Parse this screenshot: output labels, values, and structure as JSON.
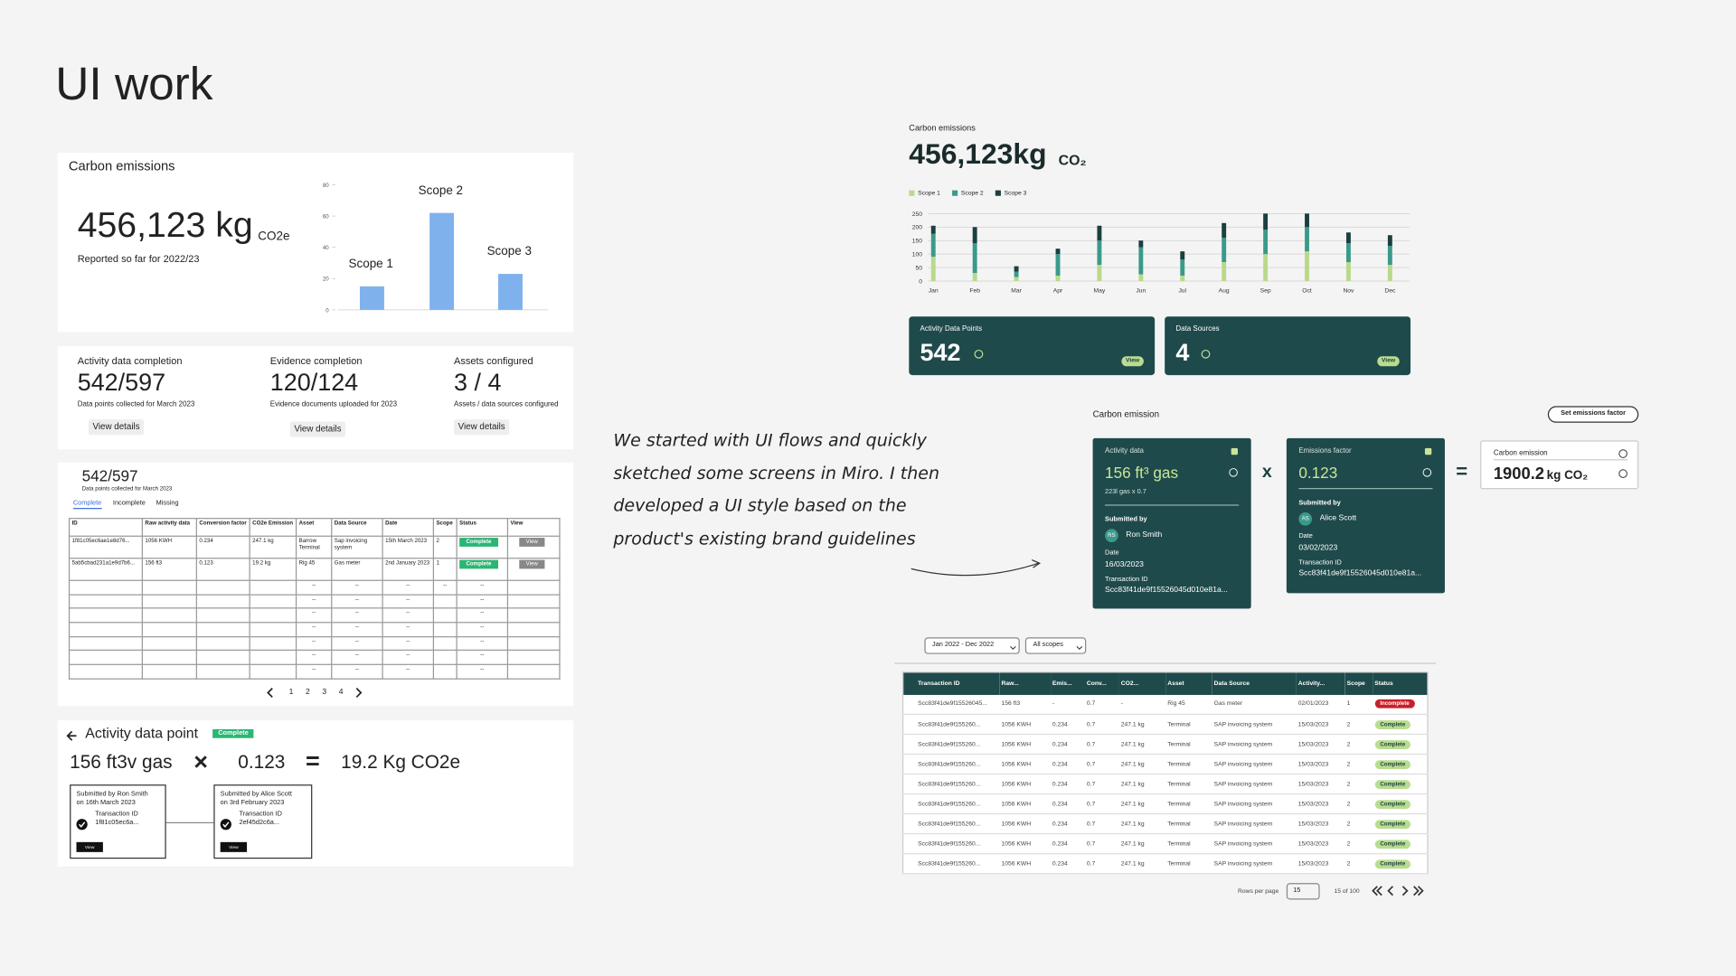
{
  "title": "UI work",
  "note": "We started with UI flows and quickly sketched some screens in Miro. I then developed a UI style based on the product's existing brand guidelines",
  "wire_summary": {
    "heading": "Carbon emissions",
    "total": "456,123 kg",
    "unit": "CO2e",
    "caption": "Reported so far for 2022/23"
  },
  "wire_stats": [
    {
      "label": "Activity data completion",
      "value": "542/597",
      "caption": "Data points collected for March 2023",
      "button": "View details"
    },
    {
      "label": "Evidence completion",
      "value": "120/124",
      "caption": "Evidence documents uploaded for 2023",
      "button": "View details"
    },
    {
      "label": "Assets configured",
      "value": "3 / 4",
      "caption": "Assets / data sources configured",
      "button": "View details"
    }
  ],
  "wire_table": {
    "value": "542/597",
    "caption": "Data points collected for March 2023",
    "tabs": [
      "Complete",
      "Incomplete",
      "Missing"
    ],
    "columns": [
      "ID",
      "Raw activity data",
      "Conversion factor",
      "CO2e Emission",
      "Asset",
      "Data Source",
      "Date",
      "Scope",
      "Status",
      "View"
    ],
    "rows": [
      [
        "1f81c05ec6ae1e8d76...",
        "1056 KWH",
        "0.234",
        "247.1 kg",
        "Barrow Terminal",
        "Sap invoicing system",
        "15th March 2023",
        "2",
        "Complete",
        "View"
      ],
      [
        "5ab5cbad231a1e9d7b6...",
        "156 ft3",
        "0.123",
        "19.2 kg",
        "Rig 45",
        "Gas meter",
        "2nd January 2023",
        "1",
        "Complete",
        "View"
      ]
    ],
    "blank": "--",
    "pages": [
      "1",
      "2",
      "3",
      "4"
    ]
  },
  "wire_detail": {
    "heading": "Activity data point",
    "status": "Complete",
    "activity": "156 ft3v gas",
    "times": "×",
    "factor": "0.123",
    "equals": "=",
    "result": "19.2 Kg CO2e",
    "cards": [
      {
        "submitted": "Submitted by Ron Smith",
        "date": "on 16th March 2023",
        "tx_label": "Transaction ID",
        "tx": "1f81c05ec6a...",
        "button": "View"
      },
      {
        "submitted": "Submitted by Alice Scott",
        "date": "on 3rd February 2023",
        "tx_label": "Transaction ID",
        "tx": "2ef45d2c6a...",
        "button": "View"
      }
    ]
  },
  "design_summary": {
    "heading": "Carbon emissions",
    "total": "456,123kg",
    "unit": "CO₂"
  },
  "chart_data": [
    {
      "type": "bar",
      "categories": [
        "Scope 1",
        "Scope 2",
        "Scope 3"
      ],
      "values": [
        15,
        62,
        23
      ],
      "color": "#7fb2ec",
      "ylim": [
        0,
        80
      ],
      "yticks": [
        0,
        20,
        40,
        60,
        80
      ],
      "grid": false
    },
    {
      "type": "stacked_bar",
      "categories": [
        "Jan",
        "Feb",
        "Mar",
        "Apr",
        "May",
        "Jun",
        "Jul",
        "Aug",
        "Sep",
        "Oct",
        "Nov",
        "Dec"
      ],
      "series": [
        {
          "name": "Scope 1",
          "color": "#b9d98a",
          "values": [
            90,
            30,
            15,
            20,
            60,
            25,
            20,
            70,
            100,
            110,
            70,
            60
          ]
        },
        {
          "name": "Scope 2",
          "color": "#3a9a8a",
          "values": [
            85,
            110,
            20,
            80,
            90,
            100,
            60,
            90,
            90,
            90,
            70,
            70
          ]
        },
        {
          "name": "Scope 3",
          "color": "#1c3f3f",
          "values": [
            30,
            60,
            20,
            20,
            55,
            25,
            30,
            55,
            60,
            50,
            40,
            40
          ]
        }
      ],
      "ylim": [
        0,
        250
      ],
      "yticks": [
        0,
        50,
        100,
        150,
        200,
        250
      ],
      "grid": true,
      "legend": "top-left"
    }
  ],
  "design_tiles": [
    {
      "label": "Activity Data Points",
      "value": "542",
      "button": "View"
    },
    {
      "label": "Data Sources",
      "value": "4",
      "button": "View"
    }
  ],
  "design_calc": {
    "heading": "Carbon emission",
    "button": "Set emissions factor",
    "times": "x",
    "equals": "=",
    "activity": {
      "label": "Activity data",
      "value": "156 ft³ gas",
      "formula": "223l gas x 0.7",
      "submitted_label": "Submitted by",
      "initials": "RS",
      "name": "Ron Smith",
      "date_label": "Date",
      "date": "16/03/2023",
      "tx_label": "Transaction ID",
      "tx": "Scc83f41de9f15526045d010e81a..."
    },
    "factor": {
      "label": "Emissions factor",
      "value": "0.123",
      "submitted_label": "Submitted by",
      "initials": "AS",
      "name": "Alice Scott",
      "date_label": "Date",
      "date": "03/02/2023",
      "tx_label": "Transaction ID",
      "tx": "Scc83f41de9f15526045d010e81a..."
    },
    "result": {
      "label": "Carbon emission",
      "value": "1900.2",
      "unit": "kg CO₂"
    }
  },
  "design_table": {
    "filters": [
      "Jan 2022 - Dec 2022",
      "All scopes"
    ],
    "columns": [
      "Transaction ID",
      "Raw...",
      "Emis...",
      "Conv...",
      "CO2...",
      "Asset",
      "Data Source",
      "Activity...",
      "Scope",
      "Status"
    ],
    "rows": [
      [
        "Scc83f41de9f15526045...",
        "156 ft3",
        "-",
        "0.7",
        "-",
        "Rig 45",
        "Gas meter",
        "02/01/2023",
        "1",
        "Incomplete"
      ],
      [
        "Scc83f41de9f155260...",
        "1056 KWH",
        "0.234",
        "0.7",
        "247.1 kg",
        "Terminal",
        "SAP invoicing system",
        "15/03/2023",
        "2",
        "Complete"
      ],
      [
        "Scc83f41de9f155260...",
        "1056 KWH",
        "0.234",
        "0.7",
        "247.1 kg",
        "Terminal",
        "SAP invoicing system",
        "15/03/2023",
        "2",
        "Complete"
      ],
      [
        "Scc83f41de9f155260...",
        "1056 KWH",
        "0.234",
        "0.7",
        "247.1 kg",
        "Terminal",
        "SAP invoicing system",
        "15/03/2023",
        "2",
        "Complete"
      ],
      [
        "Scc83f41de9f155260...",
        "1056 KWH",
        "0.234",
        "0.7",
        "247.1 kg",
        "Terminal",
        "SAP invoicing system",
        "15/03/2023",
        "2",
        "Complete"
      ],
      [
        "Scc83f41de9f155260...",
        "1056 KWH",
        "0.234",
        "0.7",
        "247.1 kg",
        "Terminal",
        "SAP invoicing system",
        "15/03/2023",
        "2",
        "Complete"
      ],
      [
        "Scc83f41de9f155260...",
        "1056 KWH",
        "0.234",
        "0.7",
        "247.1 kg",
        "Terminal",
        "SAP invoicing system",
        "15/03/2023",
        "2",
        "Complete"
      ],
      [
        "Scc83f41de9f155260...",
        "1056 KWH",
        "0.234",
        "0.7",
        "247.1 kg",
        "Terminal",
        "SAP invoicing system",
        "15/03/2023",
        "2",
        "Complete"
      ],
      [
        "Scc83f41de9f155260...",
        "1056 KWH",
        "0.234",
        "0.7",
        "247.1 kg",
        "Terminal",
        "SAP invoicing system",
        "15/03/2023",
        "2",
        "Complete"
      ]
    ],
    "status_styles": {
      "Incomplete": {
        "bg": "#c8202a",
        "fg": "#ffffff"
      },
      "Complete": {
        "bg": "#b9dd8f",
        "fg": "#1c3f3f"
      }
    },
    "rows_label": "Rows per page",
    "rows_value": "15",
    "range": "15 of 100"
  }
}
